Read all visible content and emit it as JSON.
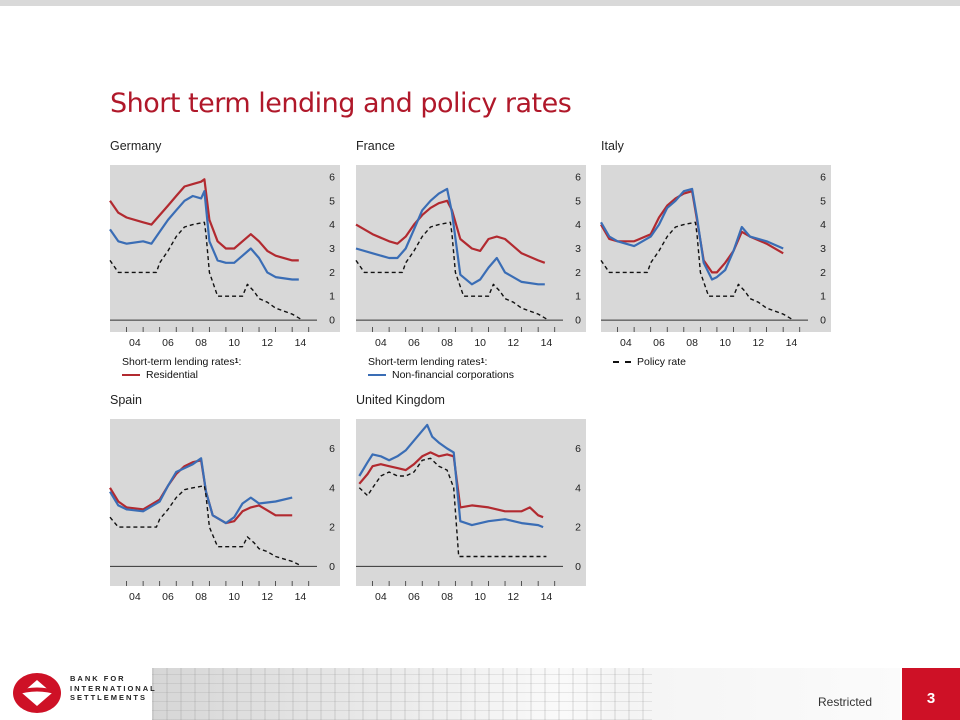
{
  "slide": {
    "title": "Short term lending and policy rates",
    "classification": "Restricted",
    "page_number": "3"
  },
  "logo": {
    "lines": [
      "BANK FOR",
      "INTERNATIONAL",
      "SETTLEMENTS"
    ]
  },
  "legends": {
    "germany": {
      "heading": "Short-term lending rates",
      "heading_sup": "1",
      "heading_suffix": ":",
      "item": "Residential"
    },
    "france": {
      "heading": "Short-term lending rates",
      "heading_sup": "1",
      "heading_suffix": ":",
      "item": "Non-financial corporations"
    },
    "italy": {
      "item": "Policy rate"
    }
  },
  "colors": {
    "residential": "#b22a30",
    "nfc": "#3a6db5",
    "policy": "#111111",
    "plot_bg": "#d8d8d8",
    "accent": "#ce1126"
  },
  "chart_data": [
    {
      "type": "line",
      "title": "Germany",
      "x_ticks": [
        "04",
        "06",
        "08",
        "10",
        "12",
        "14"
      ],
      "y_ticks": [
        0,
        1,
        2,
        3,
        4,
        5,
        6
      ],
      "xlim": [
        2003,
        2015.5
      ],
      "ylim": [
        -0.5,
        6.5
      ],
      "series": [
        {
          "key": "residential",
          "x": [
            2003,
            2003.5,
            2004,
            2005,
            2005.5,
            2006,
            2006.5,
            2007,
            2007.5,
            2008,
            2008.5,
            2008.7,
            2009,
            2009.5,
            2010,
            2010.5,
            2011,
            2011.5,
            2012,
            2012.5,
            2013,
            2014,
            2014.4
          ],
          "y": [
            5.0,
            4.5,
            4.3,
            4.1,
            4.0,
            4.4,
            4.8,
            5.2,
            5.6,
            5.7,
            5.8,
            5.9,
            4.2,
            3.3,
            3.0,
            3.0,
            3.3,
            3.6,
            3.3,
            2.9,
            2.7,
            2.5,
            2.5
          ]
        },
        {
          "key": "nfc",
          "x": [
            2003,
            2003.5,
            2004,
            2005,
            2005.5,
            2006,
            2006.5,
            2007,
            2007.5,
            2008,
            2008.5,
            2008.7,
            2009,
            2009.5,
            2010,
            2010.5,
            2011,
            2011.5,
            2012,
            2012.5,
            2013,
            2014,
            2014.4
          ],
          "y": [
            3.8,
            3.3,
            3.2,
            3.3,
            3.2,
            3.7,
            4.2,
            4.6,
            5.0,
            5.2,
            5.1,
            5.4,
            3.3,
            2.5,
            2.4,
            2.4,
            2.7,
            3.0,
            2.6,
            2.0,
            1.8,
            1.7,
            1.7
          ]
        },
        {
          "key": "policy",
          "x": [
            2003,
            2003.5,
            2004,
            2005,
            2005.8,
            2006,
            2006.5,
            2007,
            2007.5,
            2008,
            2008.7,
            2008.8,
            2009,
            2009.5,
            2010,
            2011,
            2011.3,
            2011.7,
            2012,
            2012.5,
            2013,
            2014,
            2014.5
          ],
          "y": [
            2.5,
            2.0,
            2.0,
            2.0,
            2.0,
            2.4,
            2.9,
            3.5,
            3.9,
            4.0,
            4.1,
            3.6,
            2.0,
            1.0,
            1.0,
            1.0,
            1.5,
            1.2,
            0.9,
            0.75,
            0.5,
            0.25,
            0.05
          ]
        }
      ]
    },
    {
      "type": "line",
      "title": "France",
      "x_ticks": [
        "04",
        "06",
        "08",
        "10",
        "12",
        "14"
      ],
      "y_ticks": [
        0,
        1,
        2,
        3,
        4,
        5,
        6
      ],
      "xlim": [
        2003,
        2015.5
      ],
      "ylim": [
        -0.5,
        6.5
      ],
      "series": [
        {
          "key": "residential",
          "x": [
            2003,
            2004,
            2005,
            2005.5,
            2006,
            2006.5,
            2007,
            2007.5,
            2008,
            2008.5,
            2008.8,
            2009.3,
            2010,
            2010.5,
            2011,
            2011.5,
            2012,
            2013,
            2014,
            2014.4
          ],
          "y": [
            4.0,
            3.6,
            3.3,
            3.2,
            3.5,
            4.0,
            4.4,
            4.7,
            4.9,
            5.0,
            4.6,
            3.4,
            3.0,
            2.9,
            3.4,
            3.5,
            3.4,
            2.8,
            2.5,
            2.4
          ]
        },
        {
          "key": "nfc",
          "x": [
            2003,
            2004,
            2005,
            2005.5,
            2006,
            2006.5,
            2007,
            2007.5,
            2008,
            2008.5,
            2008.8,
            2009.3,
            2010,
            2010.5,
            2011,
            2011.5,
            2012,
            2013,
            2014,
            2014.4
          ],
          "y": [
            3.0,
            2.8,
            2.6,
            2.6,
            3.0,
            3.8,
            4.6,
            5.0,
            5.3,
            5.5,
            4.5,
            1.9,
            1.5,
            1.7,
            2.2,
            2.6,
            2.0,
            1.6,
            1.5,
            1.5
          ]
        },
        {
          "key": "policy",
          "x": [
            2003,
            2003.5,
            2004,
            2005,
            2005.8,
            2006,
            2006.5,
            2007,
            2007.5,
            2008,
            2008.7,
            2008.8,
            2009,
            2009.5,
            2010,
            2011,
            2011.3,
            2011.7,
            2012,
            2012.5,
            2013,
            2014,
            2014.5
          ],
          "y": [
            2.5,
            2.0,
            2.0,
            2.0,
            2.0,
            2.4,
            2.9,
            3.5,
            3.9,
            4.0,
            4.1,
            3.6,
            2.0,
            1.0,
            1.0,
            1.0,
            1.5,
            1.2,
            0.9,
            0.75,
            0.5,
            0.25,
            0.05
          ]
        }
      ]
    },
    {
      "type": "line",
      "title": "Italy",
      "x_ticks": [
        "04",
        "06",
        "08",
        "10",
        "12",
        "14"
      ],
      "y_ticks": [
        0,
        1,
        2,
        3,
        4,
        5,
        6
      ],
      "xlim": [
        2003,
        2015.5
      ],
      "ylim": [
        -0.5,
        6.5
      ],
      "series": [
        {
          "key": "residential",
          "x": [
            2003,
            2003.5,
            2004,
            2005,
            2006,
            2006.5,
            2007,
            2007.5,
            2008,
            2008.5,
            2008.8,
            2009.2,
            2009.7,
            2010,
            2010.5,
            2011,
            2011.5,
            2012,
            2013,
            2014
          ],
          "y": [
            4.0,
            3.4,
            3.3,
            3.3,
            3.6,
            4.3,
            4.8,
            5.1,
            5.3,
            5.4,
            4.2,
            2.5,
            2.0,
            2.0,
            2.4,
            2.9,
            3.7,
            3.5,
            3.2,
            2.8
          ]
        },
        {
          "key": "nfc",
          "x": [
            2003,
            2003.5,
            2004,
            2005,
            2006,
            2006.5,
            2007,
            2007.5,
            2008,
            2008.5,
            2008.8,
            2009.2,
            2009.7,
            2010,
            2010.5,
            2011,
            2011.5,
            2012,
            2013,
            2014
          ],
          "y": [
            4.1,
            3.5,
            3.3,
            3.1,
            3.5,
            4.0,
            4.7,
            5.0,
            5.4,
            5.5,
            4.3,
            2.4,
            1.7,
            1.8,
            2.1,
            2.9,
            3.9,
            3.5,
            3.3,
            3.0
          ]
        },
        {
          "key": "policy",
          "x": [
            2003,
            2003.5,
            2004,
            2005,
            2005.8,
            2006,
            2006.5,
            2007,
            2007.5,
            2008,
            2008.7,
            2008.8,
            2009,
            2009.5,
            2010,
            2011,
            2011.3,
            2011.7,
            2012,
            2012.5,
            2013,
            2014,
            2014.5
          ],
          "y": [
            2.5,
            2.0,
            2.0,
            2.0,
            2.0,
            2.4,
            2.9,
            3.5,
            3.9,
            4.0,
            4.1,
            3.6,
            2.0,
            1.0,
            1.0,
            1.0,
            1.5,
            1.2,
            0.9,
            0.75,
            0.5,
            0.25,
            0.05
          ]
        }
      ]
    },
    {
      "type": "line",
      "title": "Spain",
      "x_ticks": [
        "04",
        "06",
        "08",
        "10",
        "12",
        "14"
      ],
      "y_ticks": [
        0,
        2,
        4,
        6
      ],
      "xlim": [
        2003,
        2015.5
      ],
      "ylim": [
        -1,
        7.5
      ],
      "series": [
        {
          "key": "residential",
          "x": [
            2003,
            2003.5,
            2004,
            2005,
            2006,
            2006.5,
            2007,
            2007.5,
            2008,
            2008.5,
            2008.8,
            2009.2,
            2010,
            2010.5,
            2011,
            2011.5,
            2012,
            2013,
            2014
          ],
          "y": [
            4.0,
            3.3,
            3.0,
            2.9,
            3.4,
            4.1,
            4.7,
            5.1,
            5.3,
            5.4,
            3.8,
            2.6,
            2.2,
            2.3,
            2.8,
            3.0,
            3.1,
            2.6,
            2.6
          ]
        },
        {
          "key": "nfc",
          "x": [
            2003,
            2003.5,
            2004,
            2005,
            2006,
            2006.5,
            2007,
            2007.5,
            2008,
            2008.5,
            2008.8,
            2009.2,
            2010,
            2010.5,
            2011,
            2011.5,
            2012,
            2013,
            2014
          ],
          "y": [
            3.8,
            3.1,
            2.9,
            2.8,
            3.3,
            4.1,
            4.8,
            5.0,
            5.2,
            5.5,
            3.8,
            2.6,
            2.2,
            2.5,
            3.2,
            3.5,
            3.2,
            3.3,
            3.5
          ]
        },
        {
          "key": "policy",
          "x": [
            2003,
            2003.5,
            2004,
            2005,
            2005.8,
            2006,
            2006.5,
            2007,
            2007.5,
            2008,
            2008.7,
            2008.8,
            2009,
            2009.5,
            2010,
            2011,
            2011.3,
            2011.7,
            2012,
            2012.5,
            2013,
            2014,
            2014.5
          ],
          "y": [
            2.5,
            2.0,
            2.0,
            2.0,
            2.0,
            2.4,
            2.9,
            3.5,
            3.9,
            4.0,
            4.1,
            3.6,
            2.0,
            1.0,
            1.0,
            1.0,
            1.5,
            1.2,
            0.9,
            0.75,
            0.5,
            0.25,
            0.05
          ]
        }
      ]
    },
    {
      "type": "line",
      "title": "United Kingdom",
      "x_ticks": [
        "04",
        "06",
        "08",
        "10",
        "12",
        "14"
      ],
      "y_ticks": [
        0,
        2,
        4,
        6
      ],
      "xlim": [
        2003,
        2015.5
      ],
      "ylim": [
        -1,
        7.5
      ],
      "series": [
        {
          "key": "residential",
          "x": [
            2003.2,
            2003.7,
            2004,
            2004.5,
            2005,
            2005.5,
            2006,
            2006.5,
            2007,
            2007.5,
            2008,
            2008.5,
            2008.9,
            2009.3,
            2010,
            2011,
            2012,
            2013,
            2013.5,
            2014,
            2014.3
          ],
          "y": [
            4.2,
            4.7,
            5.1,
            5.2,
            5.1,
            5.0,
            4.9,
            5.2,
            5.6,
            5.8,
            5.6,
            5.7,
            5.6,
            3.0,
            3.1,
            3.0,
            2.8,
            2.8,
            3.0,
            2.6,
            2.5
          ]
        },
        {
          "key": "nfc",
          "x": [
            2003.2,
            2003.7,
            2004,
            2004.5,
            2005,
            2005.5,
            2006,
            2006.5,
            2007,
            2007.3,
            2007.6,
            2008,
            2008.5,
            2008.9,
            2009.3,
            2010,
            2011,
            2012,
            2013,
            2014,
            2014.3
          ],
          "y": [
            4.6,
            5.3,
            5.7,
            5.6,
            5.4,
            5.6,
            5.9,
            6.4,
            6.9,
            7.2,
            6.6,
            6.3,
            6.0,
            5.8,
            2.3,
            2.1,
            2.3,
            2.4,
            2.2,
            2.1,
            2.0
          ]
        },
        {
          "key": "policy",
          "x": [
            2003.2,
            2003.7,
            2004,
            2004.5,
            2005,
            2005.5,
            2006,
            2006.5,
            2007,
            2007.5,
            2008,
            2008.5,
            2008.9,
            2009.2,
            2010,
            2012,
            2014,
            2014.5
          ],
          "y": [
            4.0,
            3.6,
            4.0,
            4.6,
            4.8,
            4.6,
            4.6,
            4.8,
            5.4,
            5.5,
            5.1,
            4.9,
            4.0,
            0.5,
            0.5,
            0.5,
            0.5,
            0.5
          ]
        }
      ]
    }
  ]
}
